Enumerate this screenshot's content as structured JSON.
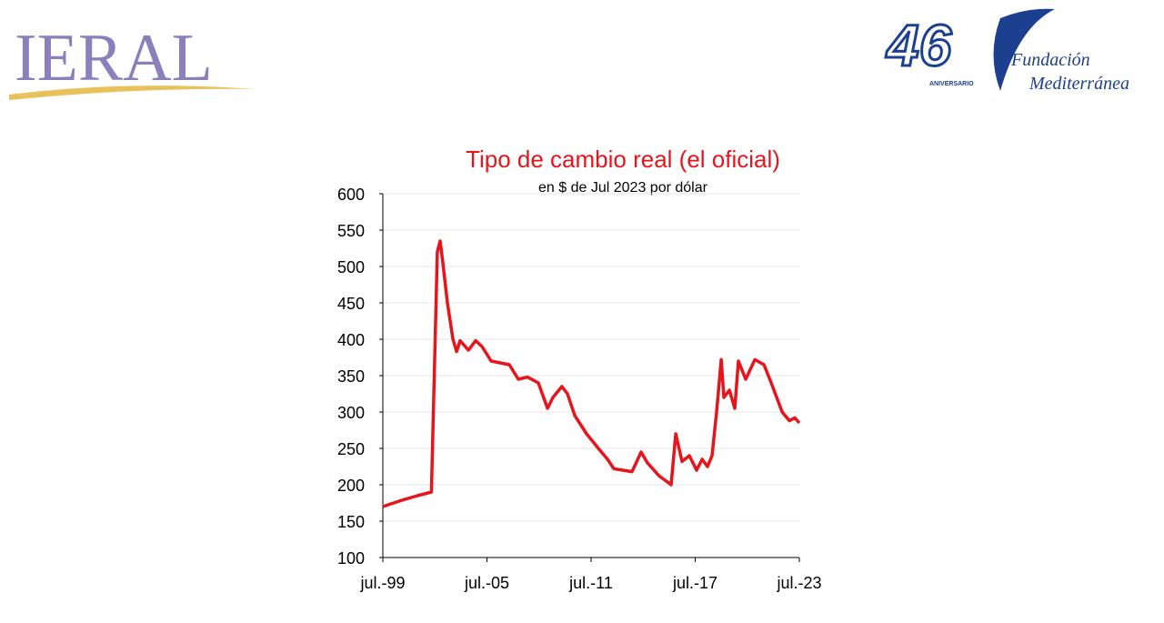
{
  "header": {
    "left_logo": "IERAL",
    "right_logo_number": "46",
    "right_logo_caption": "ANIVERSARIO",
    "right_logo_line1": "Fundación",
    "right_logo_line2": "Mediterránea"
  },
  "chart_data": {
    "type": "line",
    "title": "Tipo de cambio real (el oficial)",
    "subtitle": "en $ de Jul 2023 por dólar",
    "color": "#e8141c",
    "grid": true,
    "x": [
      1999.5,
      2000.5,
      2001.5,
      2002.3,
      2002.64,
      2002.8,
      2002.96,
      2003.22,
      2003.54,
      2003.75,
      2003.95,
      2004.43,
      2004.85,
      2005.21,
      2005.74,
      2006.79,
      2007.31,
      2007.83,
      2008.46,
      2008.99,
      2009.3,
      2009.82,
      2010.14,
      2010.56,
      2011.24,
      2011.92,
      2012.45,
      2012.81,
      2013.86,
      2014.38,
      2014.75,
      2015.43,
      2016.11,
      2016.38,
      2016.74,
      2017.16,
      2017.58,
      2017.9,
      2018.21,
      2018.47,
      2018.73,
      2019.0,
      2019.15,
      2019.47,
      2019.78,
      2019.99,
      2020.41,
      2020.94,
      2021.46,
      2021.88,
      2022.51,
      2022.93,
      2023.24,
      2023.5
    ],
    "values": [
      170,
      178,
      185,
      190,
      520,
      535,
      505,
      450,
      400,
      383,
      398,
      385,
      398,
      390,
      370,
      365,
      345,
      348,
      340,
      305,
      320,
      335,
      325,
      295,
      270,
      250,
      235,
      222,
      218,
      245,
      230,
      212,
      200,
      270,
      232,
      240,
      220,
      235,
      225,
      240,
      300,
      372,
      320,
      330,
      305,
      370,
      345,
      372,
      365,
      340,
      300,
      288,
      292,
      285
    ],
    "xlim": [
      1999.5,
      2023.5
    ],
    "xticks": [
      {
        "value": 1999.5,
        "label": "jul.-99"
      },
      {
        "value": 2005.5,
        "label": "jul.-05"
      },
      {
        "value": 2011.5,
        "label": "jul.-11"
      },
      {
        "value": 2017.5,
        "label": "jul.-17"
      },
      {
        "value": 2023.5,
        "label": "jul.-23"
      }
    ],
    "ylim": [
      100,
      600
    ],
    "yticks": [
      100,
      150,
      200,
      250,
      300,
      350,
      400,
      450,
      500,
      550,
      600
    ]
  }
}
